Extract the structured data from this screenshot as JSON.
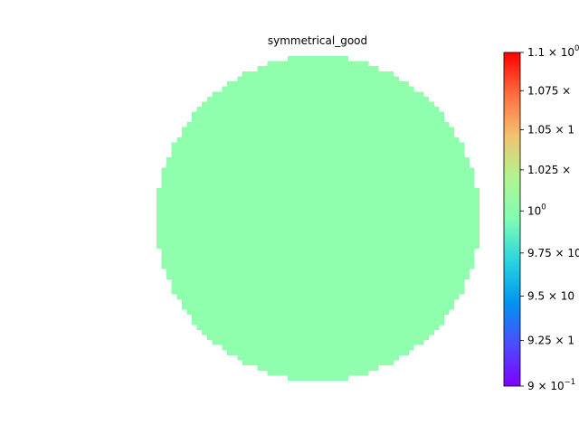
{
  "chart_data": {
    "type": "heatmap",
    "title": "symmetrical_good",
    "xlabel": "",
    "ylabel": "",
    "shape": "disk",
    "grid_size": 64,
    "fill_value": 1.0,
    "fill_color": "#8fffad",
    "colorbar": {
      "scale": "log",
      "colormap": "rainbow",
      "range": [
        0.9,
        1.1
      ],
      "ticks": [
        {
          "value": 1.1,
          "label_base": "1.1 × 10",
          "label_sup": "0"
        },
        {
          "value": 1.075,
          "label_base": "1.075 × ",
          "label_sup": ""
        },
        {
          "value": 1.05,
          "label_base": "1.05 × 1",
          "label_sup": ""
        },
        {
          "value": 1.025,
          "label_base": "1.025 × ",
          "label_sup": ""
        },
        {
          "value": 1.0,
          "label_base": "10",
          "label_sup": "0"
        },
        {
          "value": 0.975,
          "label_base": "9.75 × 10",
          "label_sup": ""
        },
        {
          "value": 0.95,
          "label_base": "9.5 × 10",
          "label_sup": ""
        },
        {
          "value": 0.925,
          "label_base": "9.25 × 1",
          "label_sup": ""
        },
        {
          "value": 0.9,
          "label_base": "9 × 10",
          "label_sup": "−1"
        }
      ]
    }
  }
}
